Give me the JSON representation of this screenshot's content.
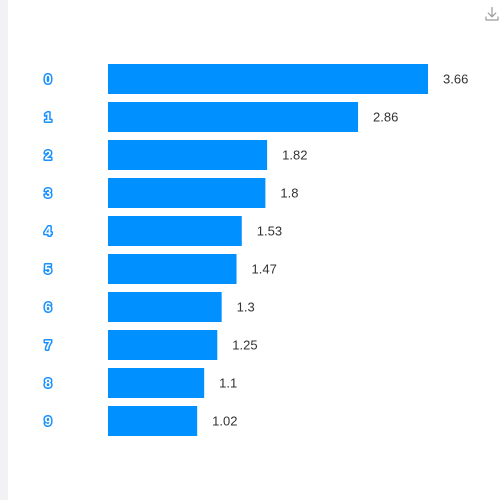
{
  "toolbar": {
    "download_icon": "download-icon"
  },
  "colors": {
    "bar": "#0090ff",
    "label_badge": "#1890ff",
    "value_text": "#333333",
    "background": "#ffffff",
    "left_strip": "#f2f2f4"
  },
  "chart_data": {
    "type": "bar",
    "orientation": "horizontal",
    "categories": [
      "0",
      "1",
      "2",
      "3",
      "4",
      "5",
      "6",
      "7",
      "8",
      "9"
    ],
    "values": [
      3.66,
      2.86,
      1.82,
      1.8,
      1.53,
      1.47,
      1.3,
      1.25,
      1.1,
      1.02
    ],
    "data_labels": [
      "3.66",
      "2.86",
      "1.82",
      "1.8",
      "1.53",
      "1.47",
      "1.3",
      "1.25",
      "1.1",
      "1.02"
    ],
    "title": "",
    "xlabel": "",
    "ylabel": "",
    "xlim": [
      0,
      3.66
    ],
    "grid": false,
    "legend": "none"
  }
}
